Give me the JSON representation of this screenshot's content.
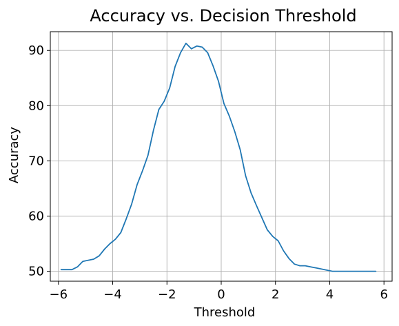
{
  "chart_data": {
    "type": "line",
    "title": "Accuracy vs. Decision Threshold",
    "xlabel": "Threshold",
    "ylabel": "Accuracy",
    "xlim": [
      -6.3,
      6.3
    ],
    "ylim": [
      48.2,
      93.4
    ],
    "xticks": [
      -6,
      -4,
      -2,
      0,
      2,
      4,
      6
    ],
    "xtick_labels": [
      "−6",
      "−4",
      "−2",
      "0",
      "2",
      "4",
      "6"
    ],
    "yticks": [
      50,
      60,
      70,
      80,
      90
    ],
    "ytick_labels": [
      "50",
      "60",
      "70",
      "80",
      "90"
    ],
    "grid": true,
    "color": "#1f77b4",
    "series": [
      {
        "x": [
          -5.9,
          -5.7,
          -5.5,
          -5.3,
          -5.1,
          -4.9,
          -4.7,
          -4.5,
          -4.3,
          -4.1,
          -3.9,
          -3.7,
          -3.5,
          -3.3,
          -3.1,
          -2.9,
          -2.7,
          -2.5,
          -2.3,
          -2.1,
          -1.9,
          -1.7,
          -1.5,
          -1.3,
          -1.1,
          -0.9,
          -0.7,
          -0.5,
          -0.3,
          -0.1,
          0.1,
          0.3,
          0.5,
          0.7,
          0.9,
          1.1,
          1.3,
          1.5,
          1.7,
          1.9,
          2.1,
          2.3,
          2.5,
          2.7,
          2.9,
          3.1,
          3.3,
          3.5,
          3.7,
          3.9,
          4.1,
          4.3,
          4.5,
          4.7,
          4.9,
          5.1,
          5.3,
          5.5,
          5.7
        ],
        "y": [
          50.3,
          50.3,
          50.3,
          50.8,
          51.8,
          52.0,
          52.2,
          52.8,
          54.0,
          55.0,
          55.8,
          57.0,
          59.5,
          62.2,
          65.7,
          68.2,
          71.0,
          75.5,
          79.3,
          80.8,
          83.2,
          87.1,
          89.6,
          91.3,
          90.3,
          90.8,
          90.6,
          89.6,
          87.2,
          84.4,
          80.4,
          78.1,
          75.3,
          72.0,
          67.3,
          64.2,
          61.9,
          59.7,
          57.5,
          56.3,
          55.5,
          53.7,
          52.3,
          51.3,
          51.0,
          51.0,
          50.8,
          50.6,
          50.4,
          50.2,
          50.0,
          50.0,
          50.0,
          50.0,
          50.0,
          50.0,
          50.0,
          50.0,
          50.0
        ]
      }
    ]
  }
}
